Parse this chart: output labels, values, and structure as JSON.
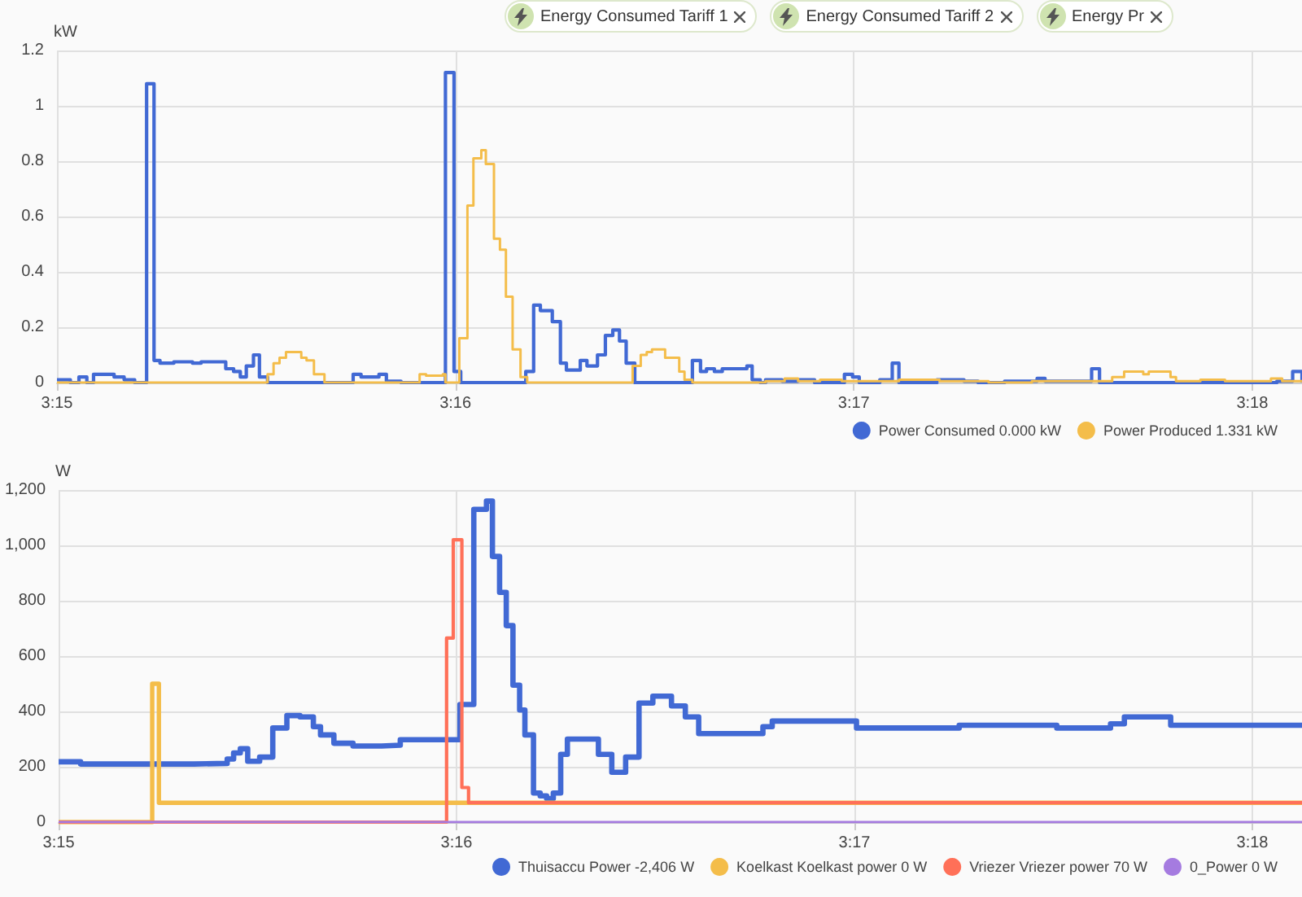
{
  "chart_data": [
    {
      "type": "step",
      "ylabel": "kW",
      "annotations": [
        "Energy Consumed Tariff 1",
        "Energy Consumed Tariff 2",
        "Energy Pr"
      ],
      "xlim": [
        3.25,
        3.30208
      ],
      "xticks": [
        {
          "value": 3.25,
          "label": "3:15"
        },
        {
          "value": 3.266667,
          "label": "3:16"
        },
        {
          "value": 3.283333,
          "label": "3:17"
        },
        {
          "value": 3.3,
          "label": "3:18"
        }
      ],
      "ylim": [
        0,
        1.2
      ],
      "yticks": [
        0,
        0.2,
        0.4,
        0.6,
        0.8,
        1,
        1.2
      ],
      "grid": true,
      "legend": "bottom right",
      "marker": "none",
      "line_style": "solid",
      "series": [
        {
          "name": "Power Consumed 0.000 kW",
          "color": "#4169d4",
          "x": [
            3.25,
            3.25056,
            3.25092,
            3.25125,
            3.25153,
            3.25239,
            3.25281,
            3.25325,
            3.25375,
            3.25406,
            3.25431,
            3.25489,
            3.25567,
            3.25603,
            3.25706,
            3.25739,
            3.25767,
            3.25792,
            3.25822,
            3.25847,
            3.25881,
            3.26239,
            3.26272,
            3.26347,
            3.26378,
            3.26439,
            3.26625,
            3.26661,
            3.26689,
            3.26961,
            3.26994,
            3.27022,
            3.27072,
            3.27106,
            3.27131,
            3.27189,
            3.27217,
            3.27261,
            3.27294,
            3.27325,
            3.27353,
            3.27381,
            3.27417,
            3.27658,
            3.27692,
            3.27717,
            3.2775,
            3.27783,
            3.27886,
            3.27908,
            3.27942,
            3.27964,
            3.28033,
            3.281,
            3.28169,
            3.28294,
            3.28328,
            3.28356,
            3.28442,
            3.28494,
            3.28522,
            3.28681,
            3.28794,
            3.28853,
            3.28964,
            3.291,
            3.29133,
            3.29328,
            3.29361,
            3.30103,
            3.30169,
            3.30208
          ],
          "values": [
            0.01,
            0,
            0.02,
            0,
            0.03,
            0.02,
            0.01,
            0,
            1.08,
            0.08,
            0.07,
            0.075,
            0.07,
            0.075,
            0.05,
            0.04,
            0.02,
            0.06,
            0.1,
            0.02,
            0,
            0.03,
            0.02,
            0.03,
            0.005,
            0,
            1.12,
            0.04,
            0,
            0.04,
            0.28,
            0.26,
            0.22,
            0.07,
            0.045,
            0.08,
            0.06,
            0.1,
            0.17,
            0.19,
            0.15,
            0.07,
            0,
            0.08,
            0.04,
            0.05,
            0.04,
            0.05,
            0.06,
            0.01,
            0,
            0.01,
            0.005,
            0.01,
            0,
            0.03,
            0.02,
            0,
            0.01,
            0.07,
            0,
            0.01,
            0.005,
            0,
            0.005,
            0.015,
            0.005,
            0.05,
            0,
            0.005,
            0.04,
            0
          ]
        },
        {
          "name": "Power Produced 1.331 kW",
          "color": "#f4bd4a",
          "x": [
            3.25,
            3.25881,
            3.25906,
            3.25931,
            3.25958,
            3.26022,
            3.26044,
            3.26075,
            3.26119,
            3.26517,
            3.26544,
            3.26614,
            3.26625,
            3.26683,
            3.26717,
            3.26742,
            3.26775,
            3.26794,
            3.26828,
            3.26853,
            3.26878,
            3.26906,
            3.26939,
            3.26967,
            3.27408,
            3.27442,
            3.27467,
            3.27489,
            3.27544,
            3.27603,
            3.27625,
            3.27658,
            3.27964,
            3.28044,
            3.281,
            3.28192,
            3.28283,
            3.28522,
            3.28692,
            3.28897,
            3.29078,
            3.29414,
            3.29464,
            3.29544,
            3.29567,
            3.29658,
            3.29681,
            3.29783,
            3.29886,
            3.30078,
            3.30125,
            3.30208
          ],
          "values": [
            0,
            0.03,
            0.07,
            0.09,
            0.11,
            0.09,
            0.08,
            0.03,
            0,
            0.03,
            0.025,
            0.03,
            0,
            0.16,
            0.64,
            0.81,
            0.84,
            0.79,
            0.52,
            0.48,
            0.31,
            0.12,
            0.02,
            0,
            0.06,
            0.1,
            0.11,
            0.12,
            0.09,
            0.04,
            0.01,
            0,
            0.005,
            0.015,
            0.005,
            0.01,
            0.005,
            0.01,
            0.005,
            0,
            0.005,
            0.02,
            0.04,
            0.03,
            0.04,
            0.02,
            0.005,
            0.01,
            0.005,
            0.015,
            0.005,
            0.005
          ]
        }
      ]
    },
    {
      "type": "step",
      "ylabel": "W",
      "xlim": [
        3.25,
        3.30208
      ],
      "xticks": [
        {
          "value": 3.25,
          "label": "3:15"
        },
        {
          "value": 3.266667,
          "label": "3:16"
        },
        {
          "value": 3.283333,
          "label": "3:17"
        },
        {
          "value": 3.3,
          "label": "3:18"
        }
      ],
      "ylim": [
        0,
        1200
      ],
      "yticks": [
        0,
        200,
        400,
        600,
        800,
        {
          "value": 1000,
          "label": "1,000"
        },
        {
          "value": 1200,
          "label": "1,200"
        }
      ],
      "grid": true,
      "legend": "bottom right",
      "marker": "none",
      "line_style": "solid",
      "series": [
        {
          "name": "Thuisaccu Power -2,406 W",
          "color": "#4169d4",
          "x": [
            3.25,
            3.25092,
            3.25567,
            3.25706,
            3.25733,
            3.25761,
            3.25792,
            3.25842,
            3.25897,
            3.25956,
            3.26011,
            3.26067,
            3.26097,
            3.26153,
            3.26233,
            3.26353,
            3.26431,
            3.26681,
            3.26739,
            3.26792,
            3.26817,
            3.26847,
            3.26875,
            3.26903,
            3.26931,
            3.26953,
            3.26989,
            3.27017,
            3.27044,
            3.27072,
            3.27103,
            3.27131,
            3.27261,
            3.27317,
            3.27375,
            3.27431,
            3.27489,
            3.27567,
            3.27625,
            3.27681,
            3.2795,
            3.27989,
            3.28342,
            3.28772,
            3.29181,
            3.29406,
            3.29464,
            3.29658,
            3.30208
          ],
          "values": [
            218,
            210,
            212,
            228,
            250,
            265,
            220,
            235,
            340,
            385,
            380,
            345,
            315,
            285,
            275,
            278,
            298,
            425,
            1130,
            1160,
            960,
            830,
            710,
            495,
            405,
            315,
            105,
            95,
            85,
            105,
            245,
            300,
            245,
            180,
            235,
            430,
            455,
            420,
            380,
            320,
            345,
            365,
            340,
            350,
            340,
            355,
            380,
            350,
            345
          ]
        },
        {
          "name": "Koelkast Koelkast power 0 W",
          "color": "#f4bd4a",
          "x": [
            3.25,
            3.25392,
            3.2542,
            3.30208
          ],
          "values": [
            0,
            500,
            70,
            70
          ]
        },
        {
          "name": "Vriezer Vriezer power 70 W",
          "color": "#ff7058",
          "x": [
            3.25,
            3.26625,
            3.26653,
            3.26689,
            3.26717,
            3.30208
          ],
          "values": [
            0,
            665,
            1020,
            125,
            70,
            70
          ]
        },
        {
          "name": "0_Power 0 W",
          "color": "#a57be0",
          "x": [
            3.25,
            3.30208
          ],
          "values": [
            0,
            0
          ]
        }
      ]
    }
  ]
}
